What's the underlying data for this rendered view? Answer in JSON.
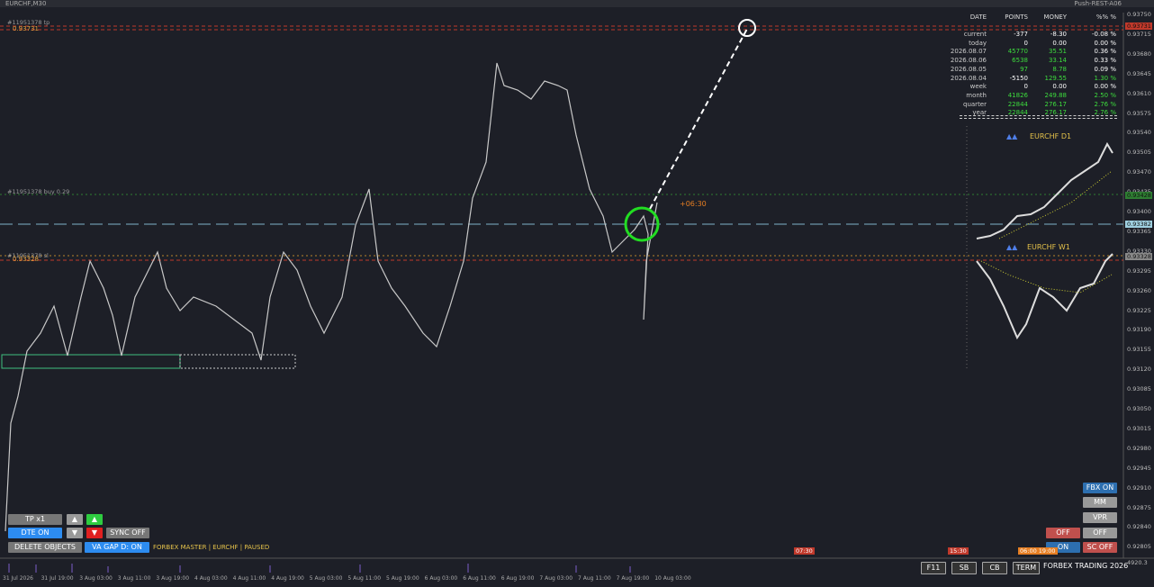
{
  "header": {
    "symbol": "EURCHF,M30",
    "server": "Push-REST-A06"
  },
  "price_axis": [
    "0.93750",
    "0.93715",
    "0.93680",
    "0.93645",
    "0.93610",
    "0.93575",
    "0.93540",
    "0.93505",
    "0.93470",
    "0.93435",
    "0.93400",
    "0.93365",
    "0.93330",
    "0.93295",
    "0.93260",
    "0.93225",
    "0.93190",
    "0.93155",
    "0.93120",
    "0.93085",
    "0.93050",
    "0.93015",
    "0.92980",
    "0.92945",
    "0.92910",
    "0.92875",
    "0.92840",
    "0.92805"
  ],
  "price_marks": {
    "tp": "0.93731",
    "entry": "0.93428",
    "bid": "0.93382",
    "sl": "0.93328"
  },
  "order_lines": {
    "tp_label": "#11951378 tp",
    "tp_price": "0.93731",
    "buy_label": "#11951378 buy 0.29",
    "sl_label": "#11951378 sl",
    "sl_price": "0.93328"
  },
  "countdown": "+06:30",
  "stats": {
    "header": [
      "DATE",
      "POINTS",
      "MONEY",
      "%%  %"
    ],
    "rows": [
      [
        "current",
        "-377",
        "-8.30",
        "-0.08 %"
      ],
      [
        "today",
        "0",
        "0.00",
        "0.00 %"
      ],
      [
        "2026.08.07",
        "45770",
        "35.51",
        "0.36 %"
      ],
      [
        "2026.08.06",
        "6538",
        "33.14",
        "0.33 %"
      ],
      [
        "2026.08.05",
        "97",
        "8.78",
        "0.09 %"
      ],
      [
        "2026.08.04",
        "-5150",
        "129.55",
        "1.30 %"
      ],
      [
        "week",
        "0",
        "0.00",
        "0.00 %"
      ],
      [
        "month",
        "41826",
        "249.88",
        "2.50 %"
      ],
      [
        "quarter",
        "22844",
        "276.17",
        "2.76 %"
      ],
      [
        "year",
        "22844",
        "276.17",
        "2.76 %"
      ]
    ]
  },
  "mini_charts": [
    "EURCHF  D1",
    "EURCHF  W1"
  ],
  "left_buttons": {
    "tp": "TP x1",
    "dte": "DTE ON",
    "sync": "SYNC  OFF",
    "delete": "DELETE OBJECTS",
    "vagap": "VA GAP D: ON",
    "status": "FORBEX MASTER  |  EURCHF  |  PAUSED"
  },
  "right_buttons": {
    "fbx": "FBX ON",
    "mm": "MM",
    "vpr": "VPR",
    "off1": "OFF",
    "off2": "OFF",
    "on": "ON",
    "sc": "SC OFF"
  },
  "session_marks": [
    "07:30",
    "15:30",
    "06:00 19:00"
  ],
  "volume_label": "4920.3",
  "time_axis": [
    "31 Jul 2026",
    "31 Jul 19:00",
    "3 Aug 03:00",
    "3 Aug 11:00",
    "3 Aug 19:00",
    "4 Aug 03:00",
    "4 Aug 11:00",
    "4 Aug 19:00",
    "5 Aug 03:00",
    "5 Aug 11:00",
    "5 Aug 19:00",
    "6 Aug 03:00",
    "6 Aug 11:00",
    "6 Aug 19:00",
    "7 Aug 03:00",
    "7 Aug 11:00",
    "7 Aug 19:00",
    "10 Aug 03:00"
  ],
  "footer": {
    "buttons": [
      "F11",
      "SB",
      "CB",
      "TERM"
    ],
    "brand": "FORBEX TRADING 2026"
  }
}
